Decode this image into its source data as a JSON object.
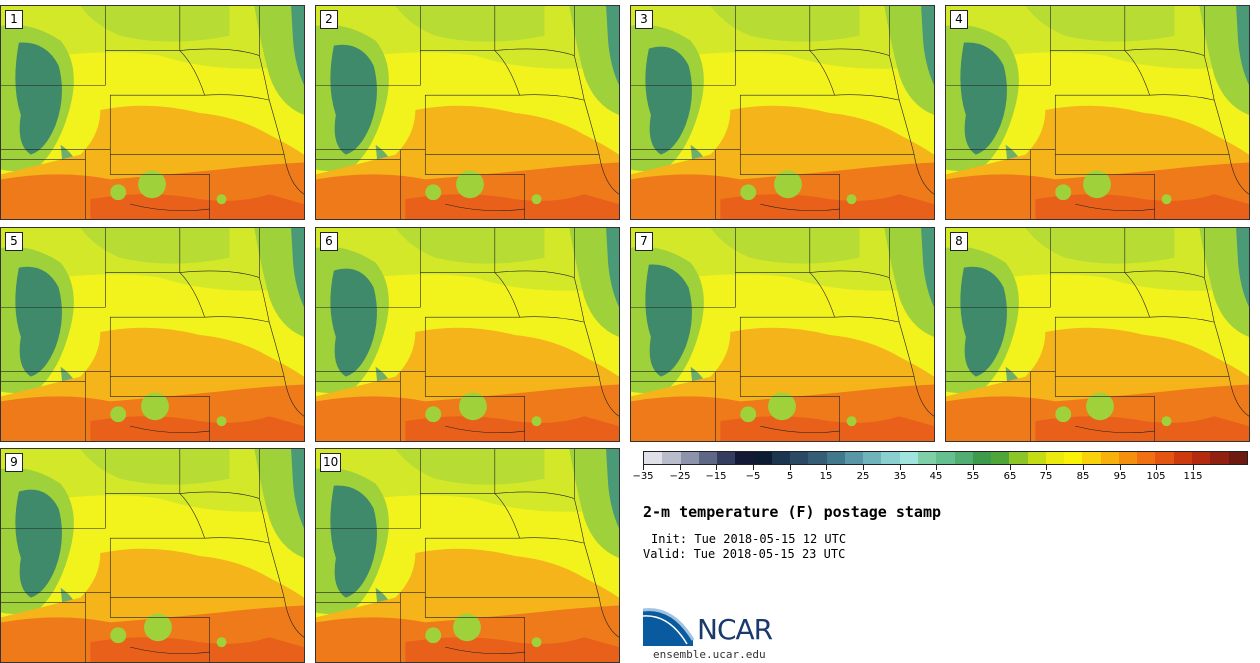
{
  "members": [
    {
      "label": "1"
    },
    {
      "label": "2"
    },
    {
      "label": "3"
    },
    {
      "label": "4"
    },
    {
      "label": "5"
    },
    {
      "label": "6"
    },
    {
      "label": "7"
    },
    {
      "label": "8"
    },
    {
      "label": "9"
    },
    {
      "label": "10"
    }
  ],
  "colorbar": {
    "colors": [
      "#e0e1e8",
      "#b8bccb",
      "#8d93aa",
      "#5e6785",
      "#353d5f",
      "#141a36",
      "#0c1d33",
      "#1d3650",
      "#2a4a63",
      "#355e76",
      "#42788c",
      "#5a97a6",
      "#6fb3bb",
      "#8ad0d0",
      "#a0e4dd",
      "#7fd0a8",
      "#66bf8e",
      "#52ad72",
      "#3f9b4c",
      "#4da637",
      "#8cc528",
      "#c3dc14",
      "#eaea10",
      "#fbf20a",
      "#f9d20c",
      "#f7b10b",
      "#f5900e",
      "#f07012",
      "#e35510",
      "#cc3a0e",
      "#b32a0e",
      "#922010",
      "#6e1a10"
    ],
    "tick_labels": [
      "−35",
      "−25",
      "−15",
      "−5",
      "5",
      "15",
      "25",
      "35",
      "45",
      "55",
      "65",
      "75",
      "85",
      "95",
      "105",
      "115"
    ]
  },
  "title": "2-m temperature (F) postage stamp",
  "init": "Init: Tue 2018-05-15 12 UTC",
  "valid": "Valid: Tue 2018-05-15 23 UTC",
  "logo_text": "NCAR",
  "url": "ensemble.ucar.edu",
  "map_colors": {
    "base": "#f2f21c",
    "north": "#d4e82a",
    "mountain": "#3f8a6a",
    "mountain_light": "#6fae6a",
    "green": "#9fd13a",
    "orange": "#f5b41a",
    "red": "#ef7a1a",
    "deep": "#e8601a",
    "lake": "#4a9a78"
  }
}
